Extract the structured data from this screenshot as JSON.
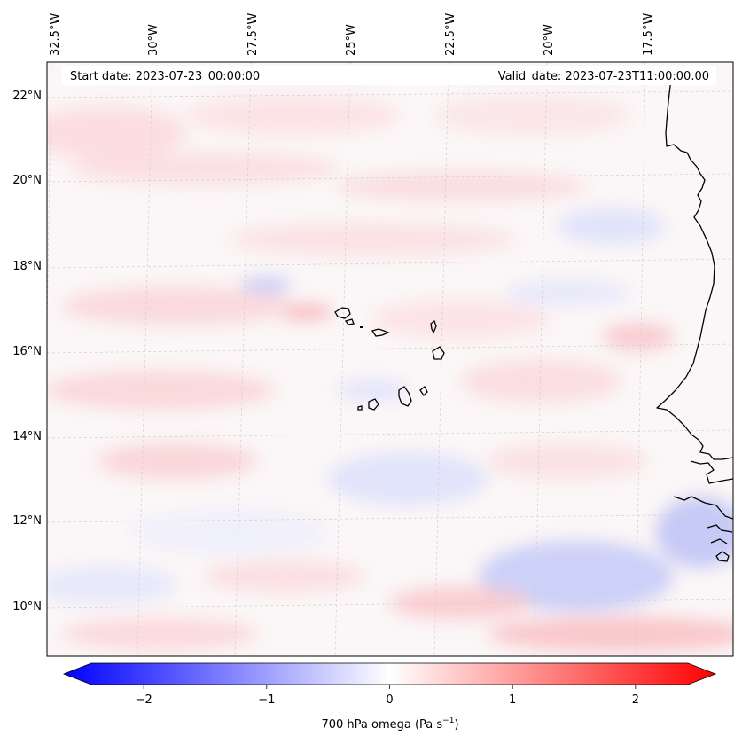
{
  "header": {
    "start_date": "Start date: 2023-07-23_00:00:00",
    "valid_date": "Valid_date: 2023-07-23T11:00:00.00"
  },
  "longitude_ticks": [
    "32.5°W",
    "30°W",
    "27.5°W",
    "25°W",
    "22.5°W",
    "20°W",
    "17.5°W"
  ],
  "latitude_ticks": [
    "22°N",
    "20°N",
    "18°N",
    "16°N",
    "14°N",
    "12°N",
    "10°N"
  ],
  "colorbar": {
    "label": "700 hPa omega (Pa s",
    "label_superscript": "−1",
    "label_suffix": ")",
    "tick_values": [
      -2,
      -1,
      0,
      1,
      2
    ],
    "tick_labels": [
      "−2",
      "−1",
      "0",
      "1",
      "2"
    ],
    "vmin": -2.65,
    "vmax": 2.65,
    "negative_color": "#0000ff",
    "neutral_color": "#ffffff",
    "positive_color": "#ff0000"
  },
  "map": {
    "field": "700 hPa omega",
    "coastline_color": "#000000",
    "gridline_color": "#c8c8c8"
  }
}
